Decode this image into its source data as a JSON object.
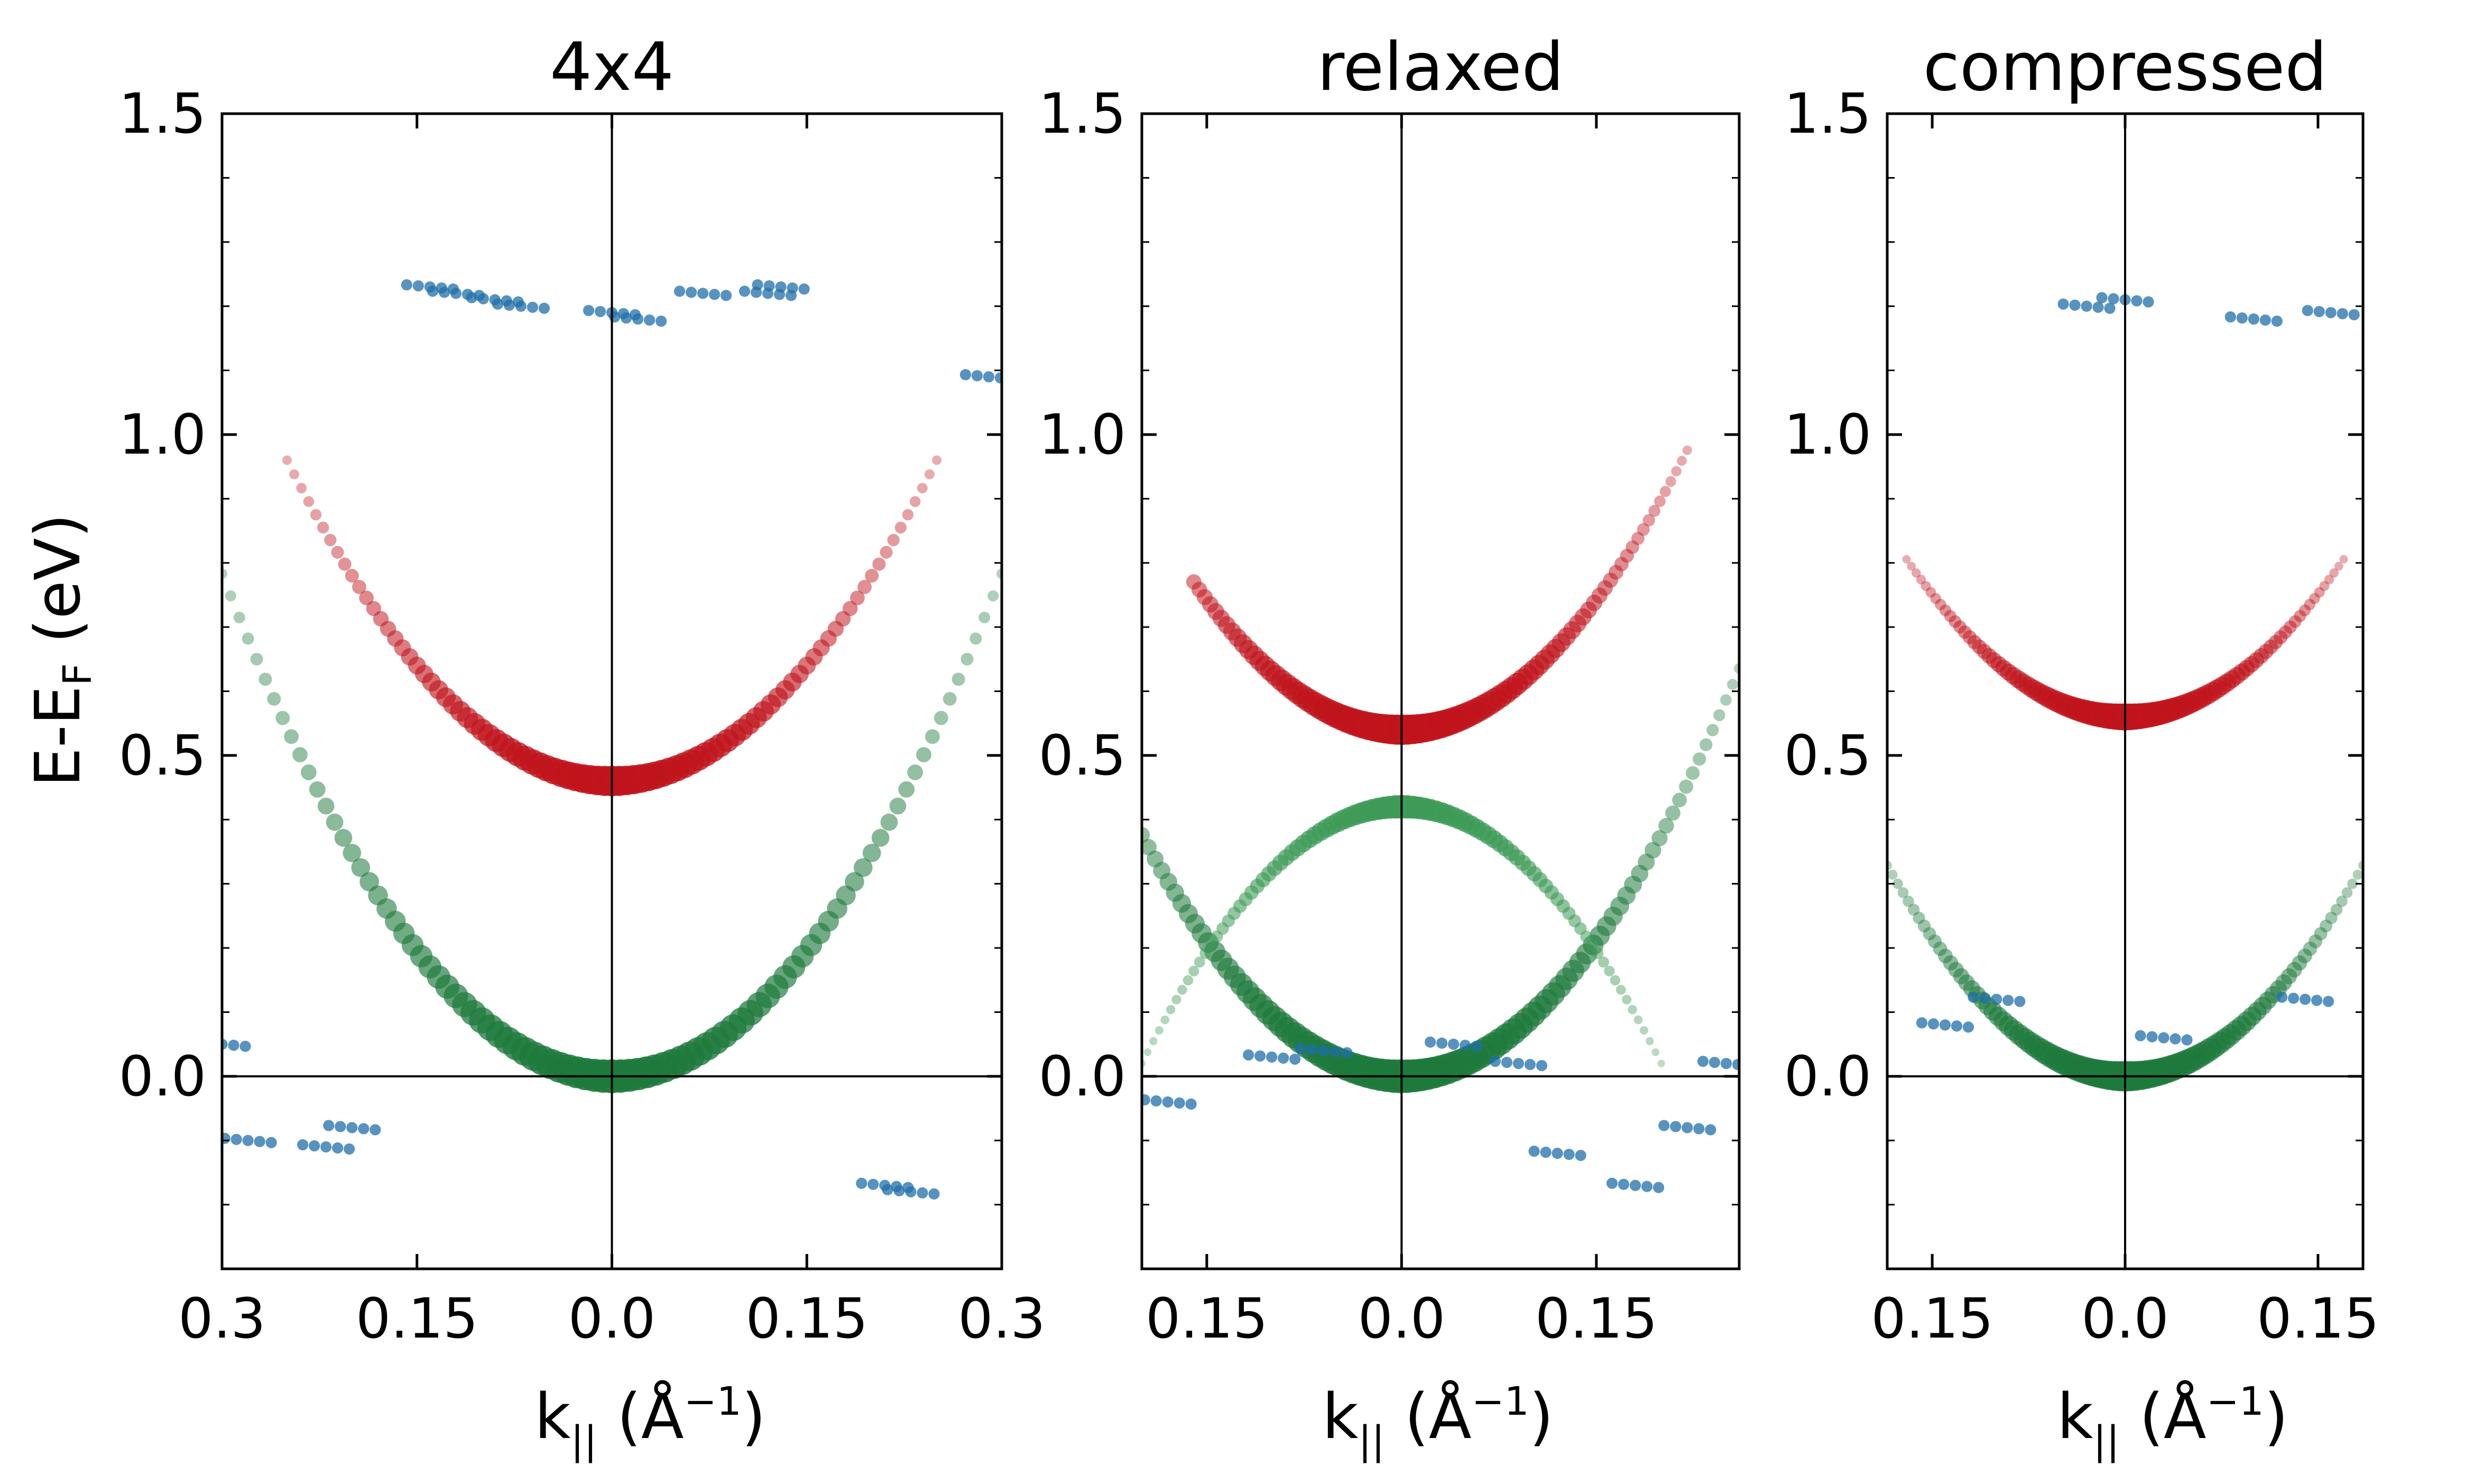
{
  "figure": {
    "ylabel_main": "E-E",
    "ylabel_sub": "F",
    "ylabel_unit": " (eV)",
    "xlabel_main": "k",
    "xlabel_sub": "||",
    "xlabel_unit_open": " (Å",
    "xlabel_unit_sup": "−1",
    "xlabel_unit_close": ")"
  },
  "chart_data": [
    {
      "type": "scatter",
      "title": "4x4",
      "xlabel": "k|| (Å−1)",
      "ylabel": "E-EF (eV)",
      "xlim": [
        -0.3,
        0.3
      ],
      "ylim": [
        -0.3,
        1.5
      ],
      "yticks": [
        0.0,
        0.5,
        1.0,
        1.5
      ],
      "ytick_labels": [
        "0.0",
        "0.5",
        "1.0",
        "1.5"
      ],
      "xticks": [
        -0.3,
        -0.15,
        0.0,
        0.15,
        0.3
      ],
      "xtick_labels": [
        "0.3",
        "0.15",
        "0.0",
        "0.15",
        "0.3"
      ],
      "reference_lines": {
        "x": 0.0,
        "y": 0.0
      },
      "series": [
        {
          "name": "green band",
          "color": "#1e7a3c",
          "shape": "parabola",
          "k0": 0.0,
          "e0": 0.0,
          "curvature": 8.7,
          "k_range": [
            -0.3,
            0.3
          ],
          "width": 1.0
        },
        {
          "name": "red band",
          "color": "#c0141c",
          "shape": "parabola",
          "k0": 0.0,
          "e0": 0.46,
          "curvature": 8.0,
          "k_range": [
            -0.25,
            0.25
          ],
          "width": 0.9
        },
        {
          "name": "blue band",
          "color": "#1f6fa8",
          "shape": "points",
          "x": [
            -0.3,
            -0.28,
            -0.22,
            -0.2,
            -0.14,
            -0.12,
            -0.09,
            -0.07,
            0.0,
            0.02,
            0.07,
            0.12,
            0.13,
            0.21,
            0.23,
            0.29
          ],
          "y": [
            0.05,
            -0.1,
            -0.11,
            -0.08,
            1.23,
            1.22,
            1.21,
            1.2,
            1.19,
            1.18,
            1.22,
            1.22,
            1.23,
            -0.17,
            -0.18,
            1.09
          ],
          "width": 0.6
        }
      ]
    },
    {
      "type": "scatter",
      "title": "relaxed",
      "xlabel": "k|| (Å−1)",
      "ylabel": "",
      "xlim": [
        -0.2,
        0.26
      ],
      "ylim": [
        -0.3,
        1.5
      ],
      "yticks": [
        0.0,
        0.5,
        1.0,
        1.5
      ],
      "ytick_labels": [
        "0.0",
        "0.5",
        "1.0",
        "1.5"
      ],
      "xticks": [
        -0.15,
        0.0,
        0.15
      ],
      "xtick_labels": [
        "0.15",
        "0.0",
        "0.15"
      ],
      "reference_lines": {
        "x": 0.0,
        "y": 0.0
      },
      "series": [
        {
          "name": "green band",
          "color": "#1e7a3c",
          "shape": "parabola",
          "k0": 0.0,
          "e0": 0.0,
          "curvature": 9.4,
          "k_range": [
            -0.2,
            0.26
          ],
          "width": 1.0
        },
        {
          "name": "green band 2",
          "color": "#3e9b57",
          "shape": "parabola",
          "k0": 0.0,
          "e0": 0.42,
          "curvature": -10.0,
          "k_range": [
            -0.2,
            0.2
          ],
          "width": 0.7
        },
        {
          "name": "red band",
          "color": "#c0141c",
          "shape": "parabola",
          "k0": 0.0,
          "e0": 0.54,
          "curvature": 9.0,
          "k_range": [
            -0.16,
            0.22
          ],
          "width": 0.9
        },
        {
          "name": "blue band",
          "color": "#1f6fa8",
          "shape": "points",
          "x": [
            -0.18,
            -0.1,
            -0.06,
            0.04,
            0.09,
            0.12,
            0.18,
            0.22,
            0.25
          ],
          "y": [
            -0.04,
            0.03,
            0.04,
            0.05,
            0.02,
            -0.12,
            -0.17,
            -0.08,
            0.02
          ],
          "width": 0.6
        }
      ]
    },
    {
      "type": "scatter",
      "title": "compressed",
      "xlabel": "k|| (Å−1)",
      "ylabel": "",
      "xlim": [
        -0.185,
        0.185
      ],
      "ylim": [
        -0.3,
        1.5
      ],
      "yticks": [
        0.0,
        0.5,
        1.0,
        1.5
      ],
      "ytick_labels": [
        "0.0",
        "0.5",
        "1.0",
        "1.5"
      ],
      "xticks": [
        -0.15,
        0.0,
        0.15
      ],
      "xtick_labels": [
        "0.15",
        "0.0",
        "0.15"
      ],
      "reference_lines": {
        "x": 0.0,
        "y": 0.0
      },
      "series": [
        {
          "name": "green band",
          "color": "#1e7a3c",
          "shape": "parabola",
          "k0": 0.0,
          "e0": 0.0,
          "curvature": 9.6,
          "k_range": [
            -0.185,
            0.185
          ],
          "width": 0.9
        },
        {
          "name": "red band",
          "color": "#c0141c",
          "shape": "parabola",
          "k0": 0.0,
          "e0": 0.56,
          "curvature": 8.5,
          "k_range": [
            -0.17,
            0.17
          ],
          "width": 0.8
        },
        {
          "name": "blue band",
          "color": "#1f6fa8",
          "shape": "points",
          "x": [
            -0.14,
            -0.1,
            -0.03,
            0.0,
            0.03,
            0.1,
            0.14,
            0.16
          ],
          "y": [
            0.08,
            0.12,
            1.2,
            1.21,
            0.06,
            1.18,
            0.12,
            1.19
          ],
          "width": 0.6
        }
      ]
    }
  ]
}
